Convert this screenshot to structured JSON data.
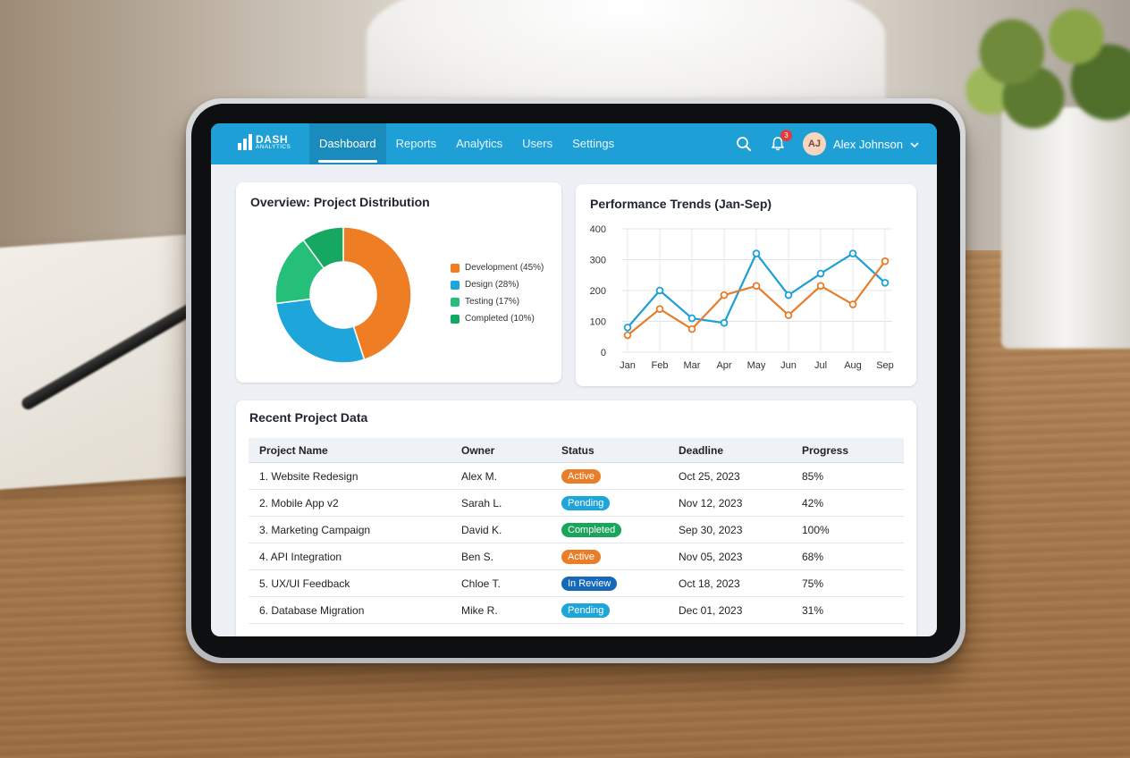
{
  "nav": {
    "logo_line1": "DASH",
    "logo_line2": "ANALYTICS",
    "tabs": [
      {
        "label": "Dashboard",
        "active": true
      },
      {
        "label": "Reports",
        "active": false
      },
      {
        "label": "Analytics",
        "active": false
      },
      {
        "label": "Users",
        "active": false
      },
      {
        "label": "Settings",
        "active": false
      }
    ],
    "notification_count": "3",
    "user_initials": "AJ",
    "user_name": "Alex Johnson",
    "icons": [
      "search-icon",
      "bell-icon",
      "chevron-down-icon"
    ]
  },
  "overview": {
    "title": "Overview: Project Distribution",
    "legend": [
      "Development (45%)",
      "Design (28%)",
      "Testing (17%)",
      "Completed (10%)"
    ]
  },
  "performance": {
    "title": "Performance Trends (Jan-Sep)"
  },
  "chart_data": [
    {
      "type": "pie",
      "title": "Overview: Project Distribution",
      "categories": [
        "Development",
        "Design",
        "Testing",
        "Completed"
      ],
      "values": [
        45,
        28,
        17,
        10
      ],
      "colors": [
        "#ee7d24",
        "#1ea6db",
        "#26bf7a",
        "#16a860"
      ],
      "legend_position": "right"
    },
    {
      "type": "line",
      "title": "Performance Trends (Jan-Sep)",
      "x": [
        "Jan",
        "Feb",
        "Mar",
        "Apr",
        "May",
        "Jun",
        "Jul",
        "Aug",
        "Sep"
      ],
      "series": [
        {
          "color": "#1e9fd6",
          "values": [
            80,
            200,
            110,
            95,
            320,
            185,
            255,
            320,
            225
          ]
        },
        {
          "color": "#e57d29",
          "values": [
            55,
            140,
            75,
            185,
            215,
            120,
            215,
            155,
            295
          ]
        }
      ],
      "yticks": [
        "400",
        "300",
        "200",
        "100",
        "0"
      ],
      "ylim": [
        0,
        400
      ],
      "grid": true
    }
  ],
  "table": {
    "title": "Recent Project Data",
    "headers": [
      "Project Name",
      "Owner",
      "Status",
      "Deadline",
      "Progress"
    ],
    "rows": [
      {
        "name": "1. Website Redesign",
        "owner": "Alex M.",
        "status": "Active",
        "status_color": "#ea7d27",
        "deadline": "Oct 25, 2023",
        "progress": "85%"
      },
      {
        "name": "2. Mobile App v2",
        "owner": "Sarah L.",
        "status": "Pending",
        "status_color": "#1ea6db",
        "deadline": "Nov 12, 2023",
        "progress": "42%"
      },
      {
        "name": "3. Marketing Campaign",
        "owner": "David K.",
        "status": "Completed",
        "status_color": "#1aa65a",
        "deadline": "Sep 30, 2023",
        "progress": "100%"
      },
      {
        "name": "4. API Integration",
        "owner": "Ben S.",
        "status": "Active",
        "status_color": "#ea7d27",
        "deadline": "Nov 05, 2023",
        "progress": "68%"
      },
      {
        "name": "5. UX/UI Feedback",
        "owner": "Chloe T.",
        "status": "In Review",
        "status_color": "#1668b8",
        "deadline": "Oct 18, 2023",
        "progress": "75%"
      },
      {
        "name": "6. Database Migration",
        "owner": "Mike R.",
        "status": "Pending",
        "status_color": "#1ea6db",
        "deadline": "Dec 01, 2023",
        "progress": "31%"
      }
    ]
  }
}
